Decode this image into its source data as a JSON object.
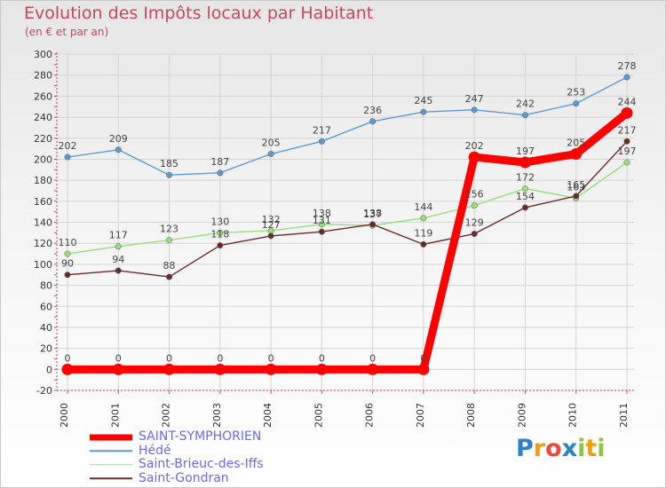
{
  "title": "Evolution des Impôts locaux par Habitant",
  "subtitle": "(en € et par an)",
  "logo": {
    "text": "Proxiti",
    "letters": [
      "P",
      "r",
      "o",
      "x",
      "i",
      "t",
      "i"
    ],
    "colors": [
      "#2c82c9",
      "#f39c12",
      "#e74c3c",
      "#2c82c9",
      "#8dc63f",
      "#f39c12",
      "#8dc63f"
    ]
  },
  "chart_data": {
    "type": "line",
    "title": "Evolution des Impôts locaux par Habitant",
    "subtitle": "(en € et par an)",
    "xlabel": "",
    "ylabel": "",
    "categories": [
      "2000",
      "2001",
      "2002",
      "2003",
      "2004",
      "2005",
      "2006",
      "2007",
      "2008",
      "2009",
      "2010",
      "2011"
    ],
    "ylim": [
      -20,
      300
    ],
    "yticks": [
      -20,
      0,
      20,
      40,
      60,
      80,
      100,
      120,
      140,
      160,
      180,
      200,
      220,
      240,
      260,
      280,
      300
    ],
    "grid": true,
    "legend_position": "bottom-left",
    "series": [
      {
        "name": "SAINT-SYMPHORIEN",
        "color": "#ff0000",
        "thick": true,
        "values": [
          0,
          0,
          0,
          0,
          0,
          0,
          0,
          0,
          202,
          197,
          205,
          244
        ]
      },
      {
        "name": "Hédé",
        "color": "#5b9bd5",
        "thick": false,
        "values": [
          202,
          209,
          185,
          187,
          205,
          217,
          236,
          245,
          247,
          242,
          253,
          278
        ]
      },
      {
        "name": "Saint-Brieuc-des-Iffs",
        "color": "#98e07a",
        "thick": false,
        "values": [
          110,
          117,
          123,
          130,
          132,
          138,
          137,
          144,
          156,
          172,
          163,
          197
        ]
      },
      {
        "name": "Saint-Gondran",
        "color": "#6b2a2a",
        "thick": false,
        "values": [
          90,
          94,
          88,
          118,
          127,
          131,
          138,
          119,
          129,
          154,
          165,
          217
        ]
      }
    ]
  }
}
